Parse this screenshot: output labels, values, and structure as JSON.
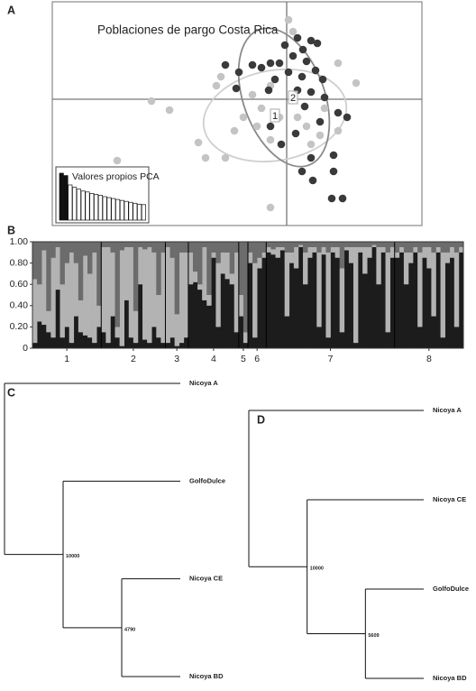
{
  "chart_data": [
    {
      "type": "scatter",
      "panel_label": "A",
      "title": "Poblaciones de pargo Costa Rica",
      "xlim": [
        -2.6,
        1.5
      ],
      "ylim": [
        -1.4,
        1.08
      ],
      "series": [
        {
          "name": "1",
          "color": "#c4c4c4",
          "ellipse_color": "#cfcfcf",
          "x": [
            0.02,
            0.07,
            -1.5,
            -1.3,
            -0.98,
            -1.88,
            -0.18,
            -0.73,
            -0.78,
            -0.38,
            -0.28,
            -0.18,
            -0.48,
            -0.58,
            -0.68,
            -0.18,
            0.12,
            0.22,
            0.37,
            0.57,
            0.77,
            0.57,
            0.42,
            -0.33,
            0.27,
            -0.08,
            -0.9
          ],
          "y": [
            0.88,
            0.75,
            -0.02,
            -0.12,
            -0.48,
            -0.68,
            -1.2,
            0.25,
            0.15,
            0.05,
            -0.1,
            0.15,
            -0.2,
            -0.35,
            -0.65,
            -0.45,
            -0.2,
            -0.3,
            -0.4,
            -0.35,
            0.18,
            0.4,
            -0.1,
            -0.3,
            -0.5,
            -0.2,
            -0.65
          ],
          "ellipse": {
            "cx": -0.13,
            "cy": -0.18,
            "rx": 0.8,
            "ry": 0.5,
            "angle": 10
          }
        },
        {
          "name": "2",
          "color": "#3a3a3a",
          "ellipse_color": "#8a8a8a",
          "x": [
            0.12,
            0.27,
            -0.02,
            0.18,
            0.07,
            0.34,
            0.22,
            -0.18,
            -0.28,
            -0.38,
            -0.68,
            -0.53,
            -0.08,
            0.02,
            0.17,
            0.32,
            0.4,
            -0.13,
            -0.2,
            -0.56,
            0.12,
            0.27,
            0.42,
            0.2,
            0.57,
            0.67,
            0.37,
            -0.18,
            -0.06,
            0.27,
            0.52,
            0.17,
            0.52,
            0.29,
            0.5,
            0.62,
            0.1
          ],
          "y": [
            0.68,
            0.65,
            0.6,
            0.55,
            0.48,
            0.62,
            0.42,
            0.4,
            0.35,
            0.38,
            0.38,
            0.3,
            0.4,
            0.3,
            0.25,
            0.32,
            0.22,
            0.22,
            0.1,
            0.12,
            0.1,
            0.08,
            0.02,
            -0.08,
            -0.15,
            -0.2,
            -0.25,
            -0.3,
            -0.5,
            -0.65,
            -0.62,
            -0.8,
            -0.8,
            -0.9,
            -1.1,
            -1.1,
            -0.38
          ],
          "ellipse": {
            "cx": -0.03,
            "cy": 0.02,
            "rx": 0.45,
            "ry": 0.8,
            "angle": 20
          }
        }
      ],
      "inset": {
        "type": "bar",
        "title": "Valores propios PCA",
        "ylim": [
          0,
          1
        ],
        "values": [
          1,
          0.95,
          0.75,
          0.7,
          0.66,
          0.62,
          0.6,
          0.57,
          0.55,
          0.53,
          0.5,
          0.48,
          0.46,
          0.44,
          0.42,
          0.4,
          0.38,
          0.36,
          0.34,
          0.33
        ],
        "colors": [
          "#111111",
          "#111111",
          "#ffffff",
          "#ffffff",
          "#ffffff",
          "#ffffff",
          "#ffffff",
          "#ffffff",
          "#ffffff",
          "#ffffff",
          "#ffffff",
          "#ffffff",
          "#ffffff",
          "#ffffff",
          "#ffffff",
          "#ffffff",
          "#ffffff",
          "#ffffff",
          "#ffffff",
          "#ffffff"
        ]
      }
    },
    {
      "type": "stacked_bar",
      "panel_label": "B",
      "ylim": [
        0,
        1
      ],
      "yticks": [
        0,
        {
          "value": 0.2,
          "label": "0.20"
        },
        {
          "value": 0.4,
          "label": "0.40"
        },
        {
          "value": 0.6,
          "label": "0.60"
        },
        {
          "value": 0.8,
          "label": "0.80"
        },
        {
          "value": 1,
          "label": "1.00"
        }
      ],
      "groups": [
        {
          "label": "1",
          "size": 15
        },
        {
          "label": "2",
          "size": 14
        },
        {
          "label": "3",
          "size": 5
        },
        {
          "label": "4",
          "size": 11
        },
        {
          "label": "5",
          "size": 2
        },
        {
          "label": "6",
          "size": 4
        },
        {
          "label": "7",
          "size": 28
        },
        {
          "label": "8",
          "size": 15
        }
      ],
      "series": [
        {
          "color": "#1c1c1c",
          "values": [
            0.05,
            0.25,
            0.22,
            0.15,
            0.1,
            0.55,
            0.1,
            0.2,
            0.05,
            0.3,
            0.15,
            0.12,
            0.1,
            0.05,
            0.2,
            0.15,
            0.05,
            0.3,
            0.1,
            0.02,
            0.45,
            0.1,
            0.05,
            0.6,
            0.08,
            0.05,
            0.2,
            0.1,
            0.05,
            0.05,
            0.1,
            0.02,
            0.05,
            0.1,
            0.6,
            0.62,
            0.55,
            0.45,
            0.4,
            0.85,
            0.2,
            0.7,
            0.65,
            0.6,
            0.15,
            0.3,
            0.05,
            0.8,
            0.1,
            0.75,
            0.85,
            0.9,
            0.88,
            0.85,
            0.92,
            0.3,
            0.8,
            0.75,
            0.95,
            0.6,
            0.85,
            0.9,
            0.2,
            0.88,
            0.1,
            0.9,
            0.85,
            0.15,
            0.92,
            0.8,
            0.05,
            0.9,
            0.7,
            0.85,
            0.95,
            0.6,
            0.9,
            0.15,
            0.85,
            0.85,
            0.9,
            0.6,
            0.8,
            0.9,
            0.2,
            0.85,
            0.75,
            0.3,
            0.9,
            0.1,
            0.8,
            0.85,
            0.2,
            0.9
          ]
        },
        {
          "color": "#b3b3b3",
          "values": [
            0.6,
            0.35,
            0.7,
            0.2,
            0.75,
            0.4,
            0.5,
            0.6,
            0.85,
            0.5,
            0.3,
            0.75,
            0.6,
            0.85,
            0.2,
            0.8,
            0.9,
            0.6,
            0.1,
            0.9,
            0.5,
            0.85,
            0.3,
            0.35,
            0.85,
            0.9,
            0.7,
            0.4,
            0.85,
            0.9,
            0.75,
            0.3,
            0.85,
            0.8,
            0.3,
            0.1,
            0.05,
            0.5,
            0.1,
            0.05,
            0.6,
            0.2,
            0.25,
            0.1,
            0.75,
            0.2,
            0.1,
            0.1,
            0.7,
            0.1,
            0.05,
            0.05,
            0.05,
            0.1,
            0.03,
            0.6,
            0.1,
            0.2,
            0.02,
            0.3,
            0.1,
            0.05,
            0.7,
            0.07,
            0.8,
            0.05,
            0.1,
            0.6,
            0.03,
            0.15,
            0.9,
            0.05,
            0.25,
            0.1,
            0.02,
            0.35,
            0.05,
            0.75,
            0.1,
            0.05,
            0.05,
            0.3,
            0.1,
            0.05,
            0.7,
            0.1,
            0.2,
            0.6,
            0.05,
            0.8,
            0.1,
            0.1,
            0.7,
            0.05
          ]
        },
        {
          "color": "#6c6c6c",
          "values": [
            0.35,
            0.4,
            0.08,
            0.65,
            0.15,
            0.05,
            0.4,
            0.2,
            0.1,
            0.2,
            0.55,
            0.13,
            0.3,
            0.1,
            0.6,
            0.05,
            0.05,
            0.1,
            0.8,
            0.08,
            0.05,
            0.05,
            0.65,
            0.05,
            0.07,
            0.05,
            0.1,
            0.5,
            0.1,
            0.05,
            0.15,
            0.68,
            0.1,
            0.1,
            0.1,
            0.28,
            0.4,
            0.05,
            0.5,
            0.1,
            0.2,
            0.1,
            0.1,
            0.3,
            0.1,
            0.5,
            0.85,
            0.1,
            0.2,
            0.15,
            0.1,
            0.05,
            0.07,
            0.05,
            0.05,
            0.1,
            0.1,
            0.05,
            0.03,
            0.1,
            0.05,
            0.05,
            0.1,
            0.05,
            0.1,
            0.05,
            0.05,
            0.25,
            0.05,
            0.05,
            0.05,
            0.05,
            0.05,
            0.05,
            0.03,
            0.05,
            0.05,
            0.1,
            0.05,
            0.1,
            0.05,
            0.1,
            0.1,
            0.05,
            0.1,
            0.05,
            0.05,
            0.1,
            0.05,
            0.1,
            0.1,
            0.05,
            0.1,
            0.05
          ]
        }
      ]
    },
    {
      "type": "tree",
      "panel_label": "C",
      "root": {
        "children": [
          {
            "label": "Nicoya A"
          },
          {
            "support": 10000,
            "children": [
              {
                "label": "GolfoDulce"
              },
              {
                "support": 4790,
                "children": [
                  {
                    "label": "Nicoya CE"
                  },
                  {
                    "label": "Nicoya BD"
                  }
                ]
              }
            ]
          }
        ]
      }
    },
    {
      "type": "tree",
      "panel_label": "D",
      "root": {
        "children": [
          {
            "label": "Nicoya A"
          },
          {
            "support": 10000,
            "children": [
              {
                "label": "Nicoya CE"
              },
              {
                "support": 5609,
                "children": [
                  {
                    "label": "GolfoDulce"
                  },
                  {
                    "label": "Nicoya BD"
                  }
                ]
              }
            ]
          }
        ]
      }
    }
  ]
}
